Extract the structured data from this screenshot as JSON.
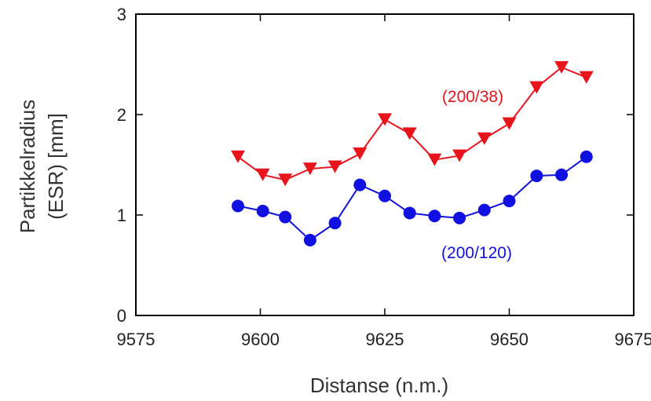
{
  "chart_data": {
    "type": "line",
    "xlabel": "Distanse (n.m.)",
    "ylabel_line1": "Partikkelradius",
    "ylabel_line2": "(ESR) [mm]",
    "xlim": [
      9575,
      9675
    ],
    "ylim": [
      0,
      3
    ],
    "x_ticks": [
      "9575",
      "9600",
      "9625",
      "9650",
      "9675"
    ],
    "y_ticks": [
      "0",
      "1",
      "2",
      "3"
    ],
    "grid": false,
    "series": [
      {
        "name": "(200/38)",
        "color": "#e8141b",
        "marker": "triangle-down",
        "x": [
          9595.5,
          9600.5,
          9605,
          9610,
          9615,
          9620,
          9625,
          9630,
          9635,
          9640,
          9645,
          9650,
          9655.5,
          9660.5,
          9665.5
        ],
        "y": [
          1.58,
          1.4,
          1.35,
          1.46,
          1.48,
          1.61,
          1.95,
          1.81,
          1.55,
          1.59,
          1.76,
          1.91,
          2.27,
          2.47,
          2.37
        ]
      },
      {
        "name": "(200/120)",
        "color": "#1010e0",
        "marker": "circle",
        "x": [
          9595.5,
          9600.5,
          9605,
          9610,
          9615,
          9620,
          9625,
          9630,
          9635,
          9640,
          9645,
          9650,
          9655.5,
          9660.5,
          9665.5
        ],
        "y": [
          1.09,
          1.04,
          0.98,
          0.75,
          0.92,
          1.3,
          1.19,
          1.02,
          0.99,
          0.97,
          1.05,
          1.14,
          1.39,
          1.4,
          1.58
        ]
      }
    ]
  }
}
